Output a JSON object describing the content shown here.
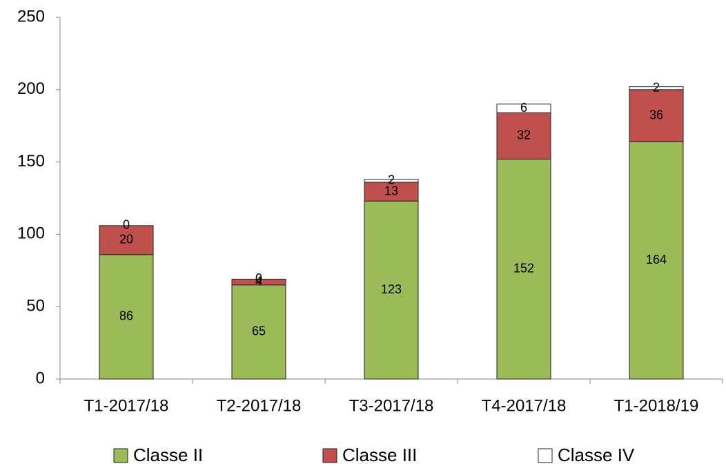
{
  "chart_data": {
    "type": "stacked_bar",
    "categories": [
      "T1-2017/18",
      "T2-2017/18",
      "T3-2017/18",
      "T4-2017/18",
      "T1-2018/19"
    ],
    "series": [
      {
        "name": "Classe II",
        "color": "#9bbb59",
        "values": [
          86,
          65,
          123,
          152,
          164
        ]
      },
      {
        "name": "Classe III",
        "color": "#c0504d",
        "values": [
          20,
          4,
          13,
          32,
          36
        ]
      },
      {
        "name": "Classe IV",
        "color": "#ffffff",
        "values": [
          0,
          0,
          2,
          6,
          2
        ]
      }
    ],
    "ylim": [
      0,
      250
    ],
    "yticks": [
      0,
      50,
      100,
      150,
      200,
      250
    ],
    "grid": false,
    "legend": "bottom"
  }
}
